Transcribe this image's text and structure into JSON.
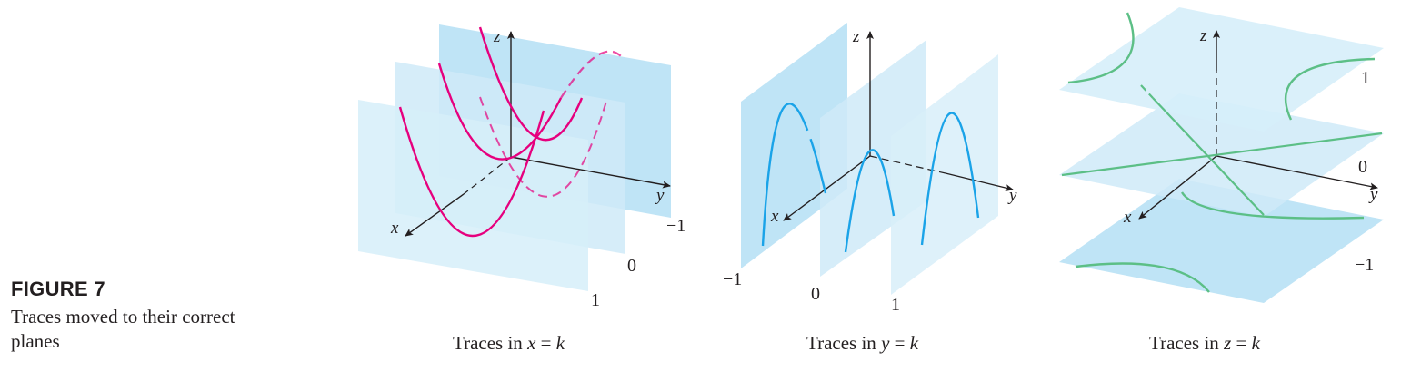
{
  "figure": {
    "title": "FIGURE 7",
    "caption": "Traces moved to their correct planes"
  },
  "panels": [
    {
      "caption_prefix": "Traces in ",
      "caption_var": "x",
      "caption_suffix": " = ",
      "caption_const": "k",
      "axes": {
        "x": "x",
        "y": "y",
        "z": "z"
      },
      "plane_labels": [
        "−1",
        "0",
        "1"
      ],
      "trace_color": "#e6007e"
    },
    {
      "caption_prefix": "Traces in ",
      "caption_var": "y",
      "caption_suffix": " = ",
      "caption_const": "k",
      "axes": {
        "x": "x",
        "y": "y",
        "z": "z"
      },
      "plane_labels": [
        "−1",
        "0",
        "1"
      ],
      "trace_color": "#1aa3e8"
    },
    {
      "caption_prefix": "Traces in ",
      "caption_var": "z",
      "caption_suffix": " = ",
      "caption_const": "k",
      "axes": {
        "x": "x",
        "y": "y",
        "z": "z"
      },
      "plane_labels": [
        "1",
        "0",
        "−1"
      ],
      "trace_color": "#5cbf86"
    }
  ],
  "colors": {
    "plane_fill": "#cfeaf8",
    "plane_fill_dark": "#bfe4f6",
    "axis": "#231f20"
  }
}
